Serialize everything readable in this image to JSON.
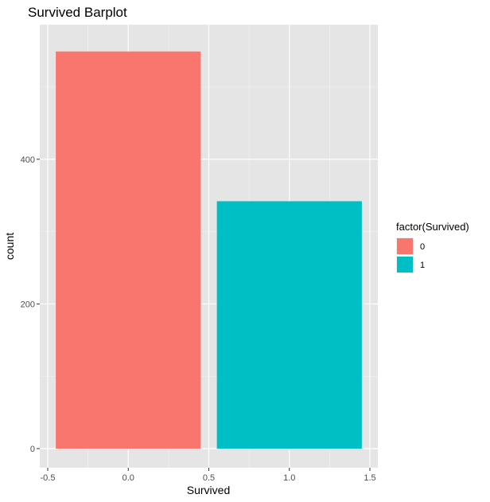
{
  "chart_data": {
    "type": "bar",
    "title": "Survived Barplot",
    "xlabel": "Survived",
    "ylabel": "count",
    "categories": [
      "0",
      "1"
    ],
    "x": [
      0.0,
      1.0
    ],
    "values": [
      549,
      342
    ],
    "bar_width": 0.9,
    "xlim": [
      -0.5,
      1.5
    ],
    "ylim": [
      0,
      575
    ],
    "x_ticks": [
      -0.5,
      0.0,
      0.5,
      1.0,
      1.5
    ],
    "x_tick_labels": [
      "-0.5",
      "0.0",
      "0.5",
      "1.0",
      "1.5"
    ],
    "y_ticks": [
      0,
      200,
      400
    ],
    "y_tick_labels": [
      "0",
      "200",
      "400"
    ],
    "grid": true,
    "panel_background": "#e5e5e5",
    "legend": {
      "title": "factor(Survived)",
      "placement": "right",
      "entries": [
        {
          "label": "0",
          "color": "#f8766d"
        },
        {
          "label": "1",
          "color": "#00bfc4"
        }
      ]
    },
    "colors": [
      "#f8766d",
      "#00bfc4"
    ]
  }
}
